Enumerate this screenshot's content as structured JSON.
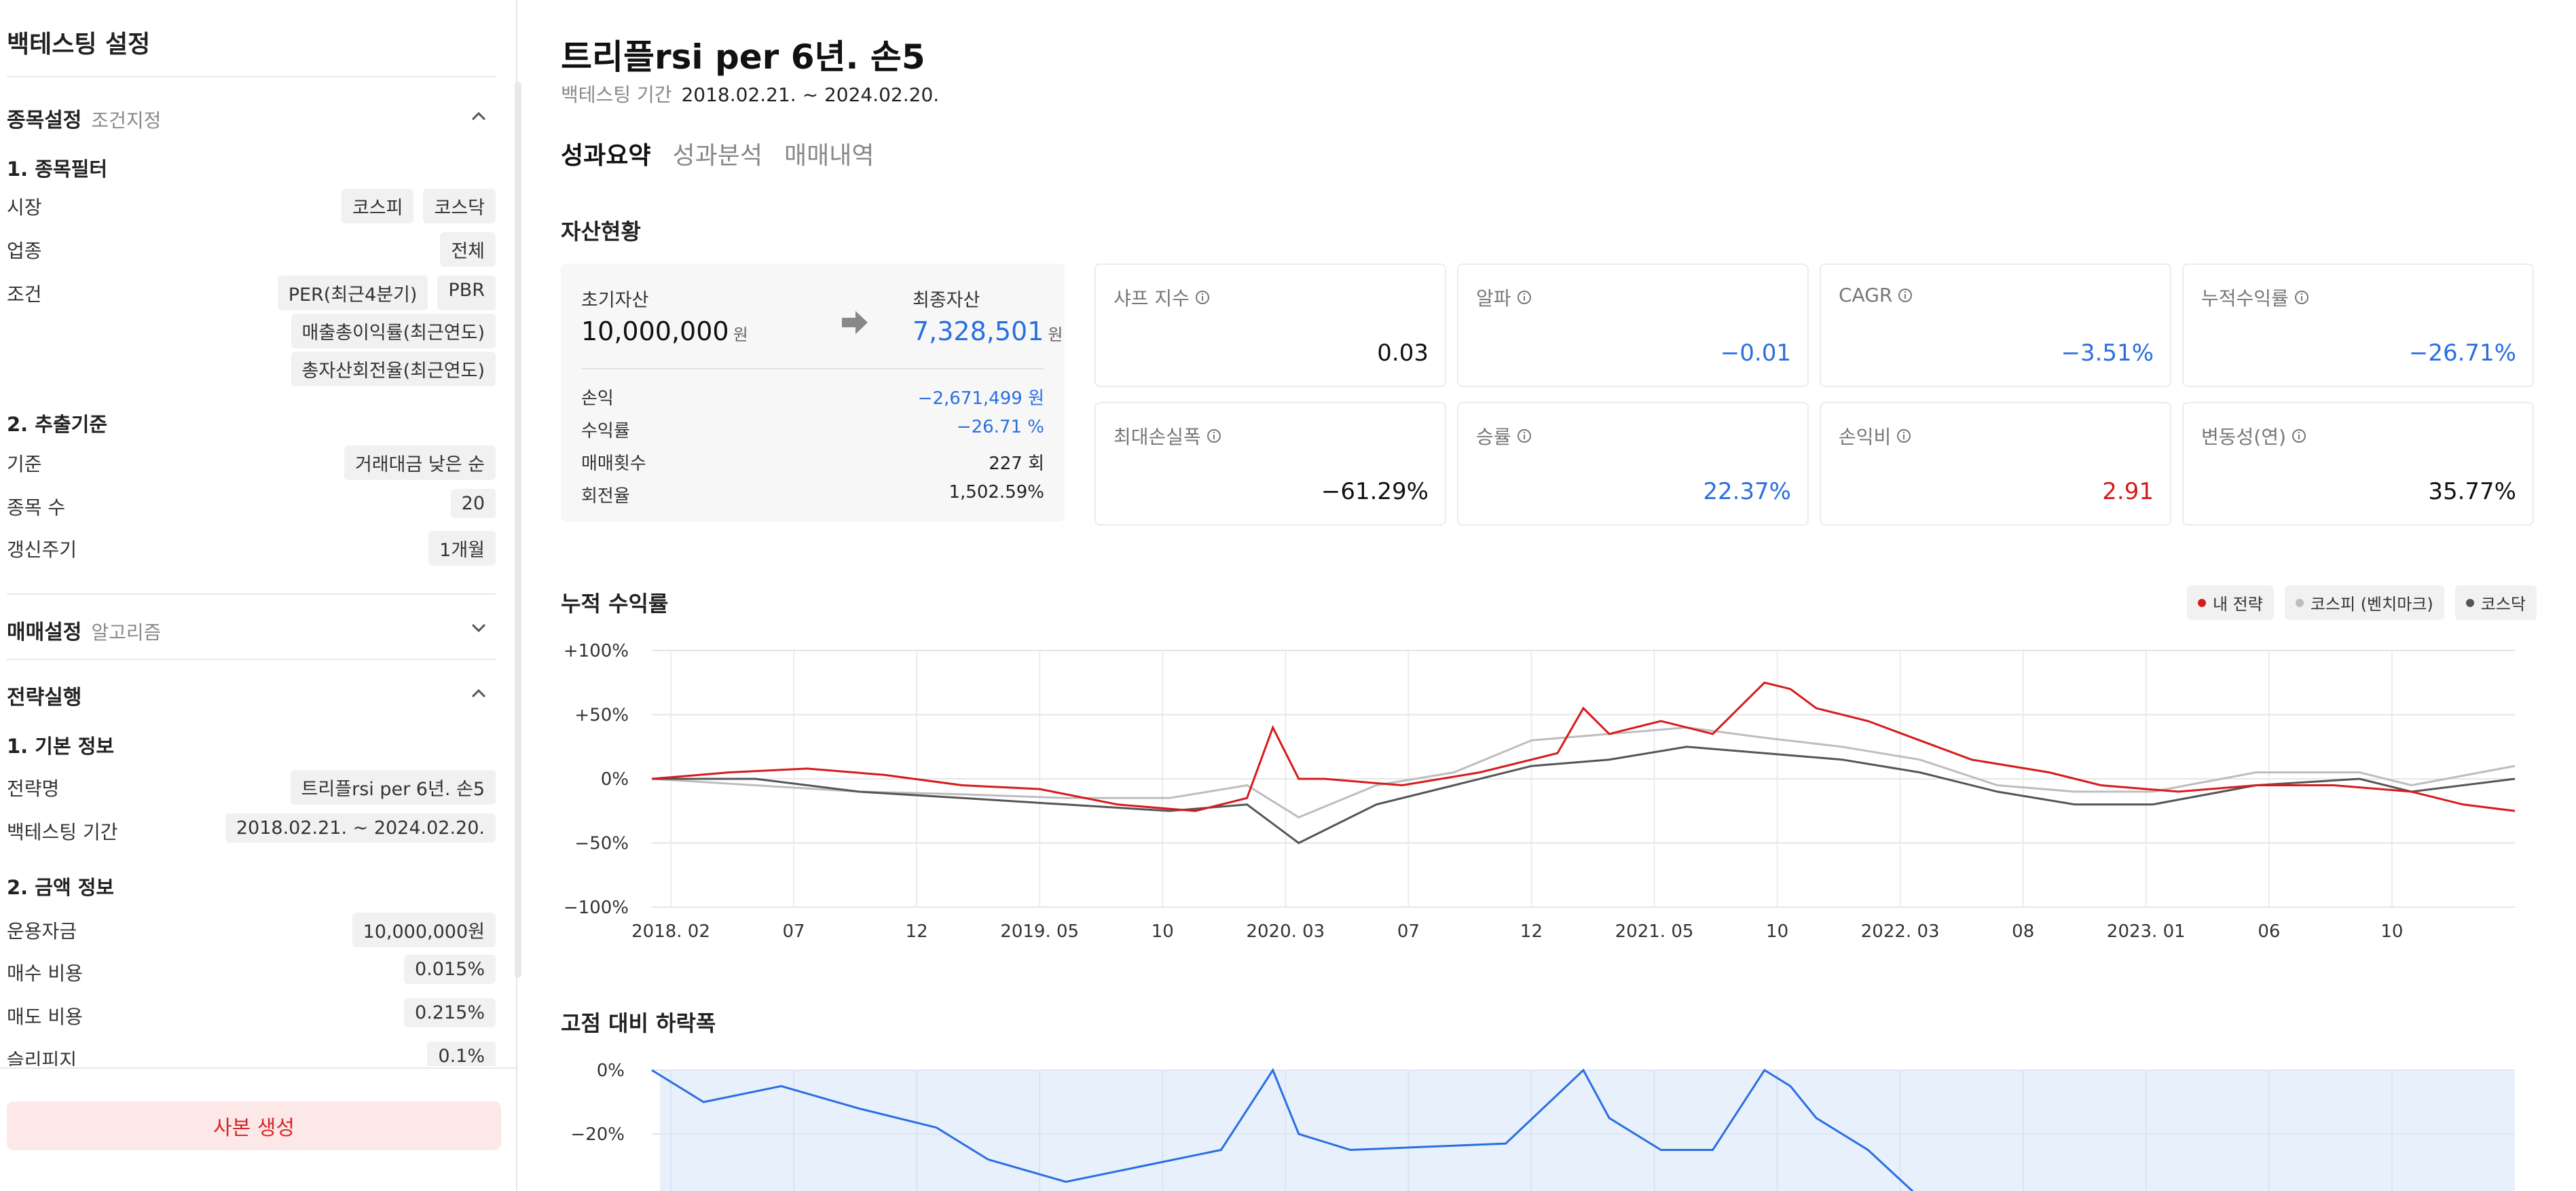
{
  "sidebar": {
    "title": "백테스팅 설정",
    "stock": {
      "title": "종목설정",
      "subtitle": "조건지정",
      "filter_title": "1. 종목필터",
      "market_label": "시장",
      "market_chips": [
        "코스피",
        "코스닥"
      ],
      "industry_label": "업종",
      "industry_value": "전체",
      "condition_label": "조건",
      "condition_chips_row1": [
        "PER(최근4분기)",
        "PBR"
      ],
      "condition_chip_row2": "매출총이익률(최근연도)",
      "condition_chip_row3": "총자산회전율(최근연도)",
      "extract_title": "2. 추출기준",
      "basis_label": "기준",
      "basis_value": "거래대금 낮은 순",
      "count_label": "종목 수",
      "count_value": "20",
      "cycle_label": "갱신주기",
      "cycle_value": "1개월"
    },
    "trade": {
      "title": "매매설정",
      "subtitle": "알고리즘"
    },
    "exec": {
      "title": "전략실행",
      "basic_title": "1. 기본 정보",
      "name_label": "전략명",
      "name_value": "트리플rsi per 6년. 손5",
      "period_label": "백테스팅 기간",
      "period_value": "2018.02.21. ~ 2024.02.20.",
      "amount_title": "2. 금액 정보",
      "capital_label": "운용자금",
      "capital_value": "10,000,000원",
      "buy_cost_label": "매수 비용",
      "buy_cost_value": "0.015%",
      "sell_cost_label": "매도 비용",
      "sell_cost_value": "0.215%",
      "slippage_label": "슬리피지",
      "slippage_value": "0.1%"
    },
    "copy_button": "사본 생성"
  },
  "main": {
    "title": "트리플rsi per 6년. 손5",
    "period_label": "백테스팅 기간",
    "period_value": "2018.02.21. ~ 2024.02.20.",
    "tabs": [
      "성과요약",
      "성과분석",
      "매매내역"
    ],
    "active_tab": "성과요약",
    "assets_title": "자산현황",
    "asset_card": {
      "initial_label": "초기자산",
      "initial_value": "10,000,000",
      "final_label": "최종자산",
      "final_value": "7,328,501",
      "unit": "원",
      "rows": [
        {
          "label": "손익",
          "value": "−2,671,499 원",
          "color": "#2a6fe0"
        },
        {
          "label": "수익률",
          "value": "−26.71 %",
          "color": "#2a6fe0"
        },
        {
          "label": "매매횟수",
          "value": "227 회",
          "color": "#222222"
        },
        {
          "label": "회전율",
          "value": "1,502.59%",
          "color": "#222222"
        }
      ]
    },
    "stats": [
      {
        "label": "샤프 지수",
        "value": "0.03",
        "color": "#111111"
      },
      {
        "label": "알파",
        "value": "−0.01",
        "color": "#2a6fe0"
      },
      {
        "label": "CAGR",
        "value": "−3.51%",
        "color": "#2a6fe0"
      },
      {
        "label": "누적수익률",
        "value": "−26.71%",
        "color": "#2a6fe0"
      },
      {
        "label": "최대손실폭",
        "value": "−61.29%",
        "color": "#111111"
      },
      {
        "label": "승률",
        "value": "22.37%",
        "color": "#2a6fe0"
      },
      {
        "label": "손익비",
        "value": "2.91",
        "color": "#d71a1a"
      },
      {
        "label": "변동성(연)",
        "value": "35.77%",
        "color": "#111111"
      }
    ],
    "cumulative_title": "누적 수익률",
    "drawdown_title": "고점 대비 하락폭"
  },
  "chart_data": [
    {
      "type": "line",
      "title": "누적 수익률",
      "x_tick_labels": [
        "2018. 02",
        "07",
        "12",
        "2019. 05",
        "10",
        "2020. 03",
        "07",
        "12",
        "2021. 05",
        "10",
        "2022. 03",
        "08",
        "2023. 01",
        "06",
        "10"
      ],
      "y_tick_labels": [
        "+100%",
        "+50%",
        "0%",
        "−50%",
        "−100%"
      ],
      "ylim": [
        -100,
        100
      ],
      "grid": true,
      "legend_position": "top-right",
      "series": [
        {
          "name": "내 전략",
          "color": "#d71a1a",
          "x": [
            "2018-02",
            "2018-05",
            "2018-08",
            "2018-11",
            "2019-02",
            "2019-05",
            "2019-08",
            "2019-11",
            "2020-01",
            "2020-02",
            "2020-03",
            "2020-04",
            "2020-07",
            "2020-10",
            "2021-01",
            "2021-02",
            "2021-03",
            "2021-05",
            "2021-07",
            "2021-09",
            "2021-10",
            "2021-11",
            "2022-01",
            "2022-03",
            "2022-05",
            "2022-08",
            "2022-10",
            "2023-01",
            "2023-04",
            "2023-07",
            "2023-10",
            "2023-12",
            "2024-02"
          ],
          "y": [
            0,
            5,
            8,
            3,
            -5,
            -8,
            -20,
            -25,
            -15,
            40,
            0,
            0,
            -5,
            5,
            20,
            55,
            35,
            45,
            35,
            75,
            70,
            55,
            45,
            30,
            15,
            5,
            -5,
            -10,
            -5,
            -5,
            -10,
            -20,
            -25
          ]
        },
        {
          "name": "코스피 (벤치마크)",
          "color": "#bdbdbd",
          "x": [
            "2018-02",
            "2018-06",
            "2018-10",
            "2019-02",
            "2019-06",
            "2019-10",
            "2020-01",
            "2020-03",
            "2020-06",
            "2020-09",
            "2020-12",
            "2021-03",
            "2021-06",
            "2021-09",
            "2021-12",
            "2022-03",
            "2022-06",
            "2022-09",
            "2022-12",
            "2023-04",
            "2023-08",
            "2023-10",
            "2024-02"
          ],
          "y": [
            0,
            -5,
            -10,
            -12,
            -15,
            -15,
            -5,
            -30,
            -5,
            5,
            30,
            35,
            40,
            32,
            25,
            15,
            -5,
            -10,
            -10,
            5,
            5,
            -5,
            10
          ]
        },
        {
          "name": "코스닥",
          "color": "#555555",
          "x": [
            "2018-02",
            "2018-06",
            "2018-10",
            "2019-02",
            "2019-06",
            "2019-10",
            "2020-01",
            "2020-03",
            "2020-06",
            "2020-09",
            "2020-12",
            "2021-03",
            "2021-06",
            "2021-09",
            "2021-12",
            "2022-03",
            "2022-06",
            "2022-09",
            "2022-12",
            "2023-04",
            "2023-08",
            "2023-10",
            "2024-02"
          ],
          "y": [
            0,
            0,
            -10,
            -15,
            -20,
            -25,
            -20,
            -50,
            -20,
            -5,
            10,
            15,
            25,
            20,
            15,
            5,
            -10,
            -20,
            -20,
            -5,
            0,
            -10,
            0
          ]
        }
      ]
    },
    {
      "type": "area",
      "title": "고점 대비 하락폭",
      "y_tick_labels": [
        "0%",
        "−20%"
      ],
      "series": [
        {
          "name": "",
          "color": "#2a6fe0",
          "x": [
            "2018-02",
            "2018-04",
            "2018-07",
            "2018-10",
            "2019-01",
            "2019-03",
            "2019-06",
            "2019-09",
            "2019-12",
            "2020-02",
            "2020-03",
            "2020-05",
            "2020-08",
            "2020-11",
            "2021-02",
            "2021-03",
            "2021-05",
            "2021-07",
            "2021-09",
            "2021-10",
            "2021-11",
            "2022-01",
            "2022-03"
          ],
          "y": [
            0,
            -10,
            -5,
            -12,
            -18,
            -28,
            -35,
            -30,
            -25,
            0,
            -20,
            -25,
            -24,
            -23,
            0,
            -15,
            -25,
            -25,
            0,
            -5,
            -15,
            -25,
            -40
          ]
        }
      ]
    }
  ]
}
